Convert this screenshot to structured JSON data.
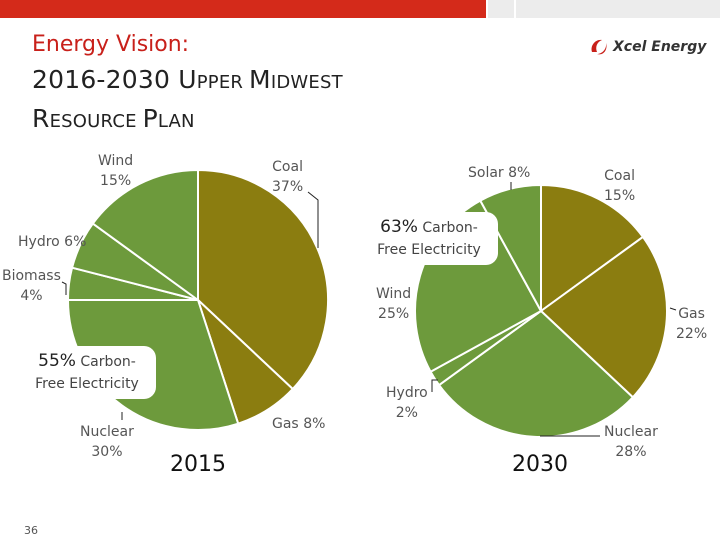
{
  "header": {
    "subtitle": "Energy Vision:",
    "title_line1_a": "2016-2030 U",
    "title_line1_b": "PPER ",
    "title_line1_c": "M",
    "title_line1_d": "IDWEST",
    "title_line2_a": "R",
    "title_line2_b": "ESOURCE ",
    "title_line2_c": "P",
    "title_line2_d": "LAN",
    "logo_text": "Xcel Energy"
  },
  "page_number": "36",
  "colors": {
    "coal": "#8b7d10",
    "gas": "#8b7d10",
    "green": "#6d9a3c",
    "accent_red": "#c8201a"
  },
  "chart_data": [
    {
      "type": "pie",
      "title": "2015",
      "slices": [
        {
          "name": "Coal",
          "value": 37,
          "label": "37%"
        },
        {
          "name": "Gas",
          "value": 8,
          "label": "8%"
        },
        {
          "name": "Nuclear",
          "value": 30,
          "label": "30%"
        },
        {
          "name": "Biomass",
          "value": 4,
          "label": "4%"
        },
        {
          "name": "Hydro",
          "value": 6,
          "label": "6%"
        },
        {
          "name": "Wind",
          "value": 15,
          "label": "15%"
        }
      ],
      "callout": {
        "big": "55%",
        "rest": " Carbon-",
        "line2": "Free Electricity"
      }
    },
    {
      "type": "pie",
      "title": "2030",
      "slices": [
        {
          "name": "Coal",
          "value": 15,
          "label": "15%"
        },
        {
          "name": "Gas",
          "value": 22,
          "label": "22%"
        },
        {
          "name": "Nuclear",
          "value": 28,
          "label": "28%"
        },
        {
          "name": "Hydro",
          "value": 2,
          "label": "2%"
        },
        {
          "name": "Wind",
          "value": 25,
          "label": "25%"
        },
        {
          "name": "Solar",
          "value": 8,
          "label": "8%"
        }
      ],
      "callout": {
        "big": "63%",
        "rest": " Carbon-",
        "line2": "Free Electricity"
      }
    }
  ]
}
